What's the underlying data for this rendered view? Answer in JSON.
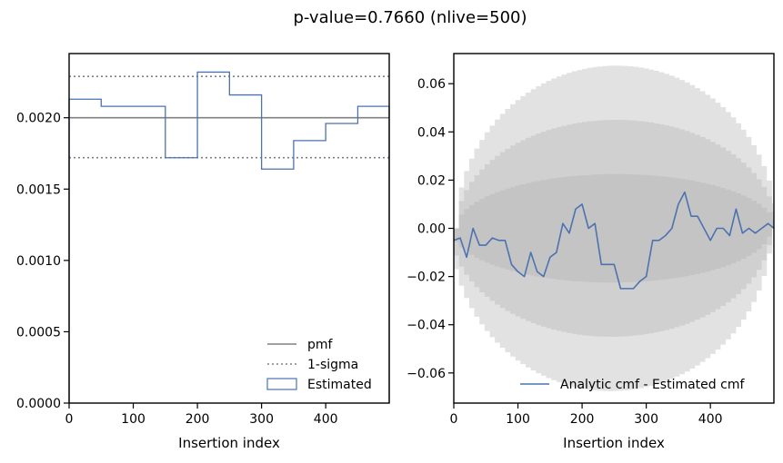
{
  "title": "p-value=0.7660 (nlive=500)",
  "chart_data": [
    {
      "type": "line",
      "xlabel": "Insertion index",
      "ylabel": "",
      "xlim": [
        0,
        499
      ],
      "ylim": [
        0,
        0.00245
      ],
      "xticks": [
        0,
        100,
        200,
        300,
        400
      ],
      "yticks": [
        0.0,
        0.0005,
        0.001,
        0.0015,
        0.002
      ],
      "ytick_labels": [
        "0.0000",
        "0.0005",
        "0.0010",
        "0.0015",
        "0.0020"
      ],
      "pmf": 0.002,
      "sigma_upper": 0.00229,
      "sigma_lower": 0.00172,
      "estimated_bin_edges": [
        0,
        50,
        150,
        200,
        250,
        300,
        350,
        400,
        450,
        500
      ],
      "estimated_values": [
        0.00213,
        0.00208,
        0.00172,
        0.00232,
        0.00216,
        0.00164,
        0.00184,
        0.00196,
        0.00208
      ],
      "colors": {
        "pmf": "#808080",
        "sigma": "#808080",
        "estimated": "#4c72b0"
      },
      "legend_position": "lower-right",
      "legend": [
        {
          "label": "pmf",
          "style": "solid"
        },
        {
          "label": "1-sigma",
          "style": "dotted"
        },
        {
          "label": "Estimated",
          "style": "box"
        }
      ]
    },
    {
      "type": "line",
      "xlabel": "Insertion index",
      "ylabel": "",
      "xlim": [
        0,
        499
      ],
      "ylim": [
        -0.0725,
        0.0725
      ],
      "xticks": [
        0,
        100,
        200,
        300,
        400
      ],
      "yticks": [
        -0.06,
        -0.04,
        -0.02,
        0.0,
        0.02,
        0.04,
        0.06
      ],
      "ytick_labels": [
        "−0.06",
        "−0.04",
        "−0.02",
        "0.00",
        "0.02",
        "0.04",
        "0.06"
      ],
      "band_sigma": 0.0225,
      "band_multipliers": [
        1,
        2,
        3
      ],
      "band_colors": [
        "#c4c4c4",
        "#d0d0d0",
        "#e2e2e2"
      ],
      "series": [
        {
          "name": "Analytic cmf - Estimated cmf",
          "color": "#4c72b0",
          "x": [
            0,
            10,
            20,
            30,
            40,
            50,
            60,
            70,
            80,
            90,
            100,
            110,
            120,
            130,
            140,
            150,
            160,
            170,
            180,
            190,
            200,
            210,
            220,
            230,
            240,
            250,
            260,
            270,
            280,
            290,
            300,
            310,
            320,
            330,
            340,
            350,
            360,
            370,
            380,
            390,
            400,
            410,
            420,
            430,
            440,
            450,
            460,
            470,
            480,
            490,
            499
          ],
          "y": [
            -0.005,
            -0.004,
            -0.012,
            0.0,
            -0.007,
            -0.007,
            -0.004,
            -0.005,
            -0.005,
            -0.015,
            -0.018,
            -0.02,
            -0.01,
            -0.018,
            -0.02,
            -0.012,
            -0.01,
            0.002,
            -0.002,
            0.008,
            0.01,
            0.0,
            0.002,
            -0.015,
            -0.015,
            -0.015,
            -0.025,
            -0.025,
            -0.025,
            -0.022,
            -0.02,
            -0.005,
            -0.005,
            -0.003,
            0.0,
            0.01,
            0.015,
            0.005,
            0.005,
            0.0,
            -0.005,
            0.0,
            0.0,
            -0.003,
            0.008,
            -0.002,
            0.0,
            -0.002,
            0.0,
            0.002,
            0.0
          ]
        }
      ],
      "legend_position": "lower-right",
      "legend": [
        {
          "label": "Analytic cmf - Estimated cmf",
          "style": "solid"
        }
      ]
    }
  ]
}
